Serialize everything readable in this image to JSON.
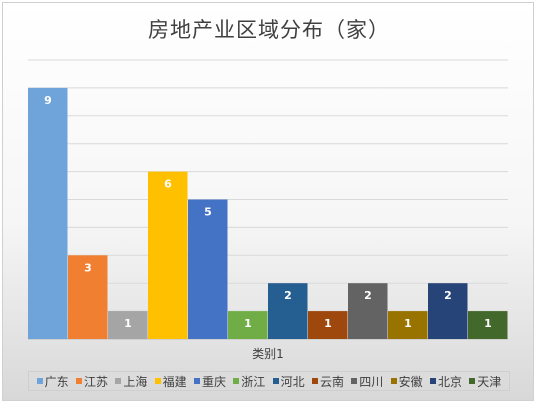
{
  "chart_data": {
    "type": "bar",
    "title": "房地产业区域分布（家）",
    "xlabel": "类别1",
    "ylabel": "",
    "ylim": [
      0,
      10
    ],
    "grid": true,
    "legend_position": "bottom",
    "categories": [
      "类别1"
    ],
    "series": [
      {
        "name": "广东",
        "value": 9,
        "color": "#6FA4DB"
      },
      {
        "name": "江苏",
        "value": 3,
        "color": "#F07F31"
      },
      {
        "name": "上海",
        "value": 1,
        "color": "#A5A5A5"
      },
      {
        "name": "福建",
        "value": 6,
        "color": "#FFC000"
      },
      {
        "name": "重庆",
        "value": 5,
        "color": "#4472C4"
      },
      {
        "name": "浙江",
        "value": 1,
        "color": "#70AD47"
      },
      {
        "name": "河北",
        "value": 2,
        "color": "#255E91"
      },
      {
        "name": "云南",
        "value": 1,
        "color": "#9E480E"
      },
      {
        "name": "四川",
        "value": 2,
        "color": "#636363"
      },
      {
        "name": "安徽",
        "value": 1,
        "color": "#997300"
      },
      {
        "name": "北京",
        "value": 2,
        "color": "#264478"
      },
      {
        "name": "天津",
        "value": 1,
        "color": "#43682B"
      }
    ]
  }
}
